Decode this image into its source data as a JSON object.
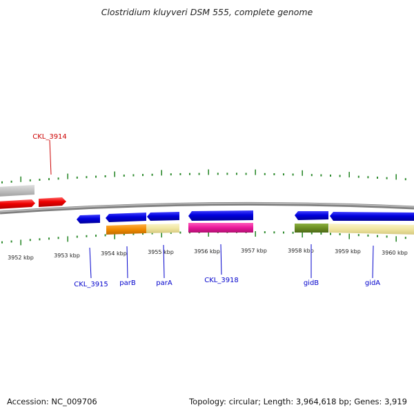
{
  "title": "Clostridium kluyveri DSM 555, complete genome",
  "footer": {
    "accession": "Accession: NC_009706",
    "summary": "Topology: circular; Length: 3,964,618 bp; Genes: 3,919"
  },
  "scale": {
    "unit": "kbp",
    "ticks": [
      "3952 kbp",
      "3953 kbp",
      "3954 kbp",
      "3955 kbp",
      "3956 kbp",
      "3957 kbp",
      "3958 kbp",
      "3959 kbp",
      "3960 kbp"
    ]
  },
  "gene_labels": [
    {
      "text": "CKL_3914",
      "color": "#cc0000"
    },
    {
      "text": "CKL_3915",
      "color": "#0000cc"
    },
    {
      "text": "parB",
      "color": "#0000cc"
    },
    {
      "text": "parA",
      "color": "#0000cc"
    },
    {
      "text": "CKL_3918",
      "color": "#0000cc"
    },
    {
      "text": "gidB",
      "color": "#0000cc"
    },
    {
      "text": "gidA",
      "color": "#0000cc"
    }
  ],
  "colors": {
    "forward_gene": "#ee0000",
    "reverse_gene": "#0000dd",
    "other_feature": "#c0c0c0",
    "tick_marks": "#2d8a2d",
    "backbone": "#808080",
    "domain_orange": "#f08a00",
    "domain_yellow": "#f0e6a0",
    "domain_pink": "#e8189a",
    "domain_olive": "#6b8e23"
  }
}
